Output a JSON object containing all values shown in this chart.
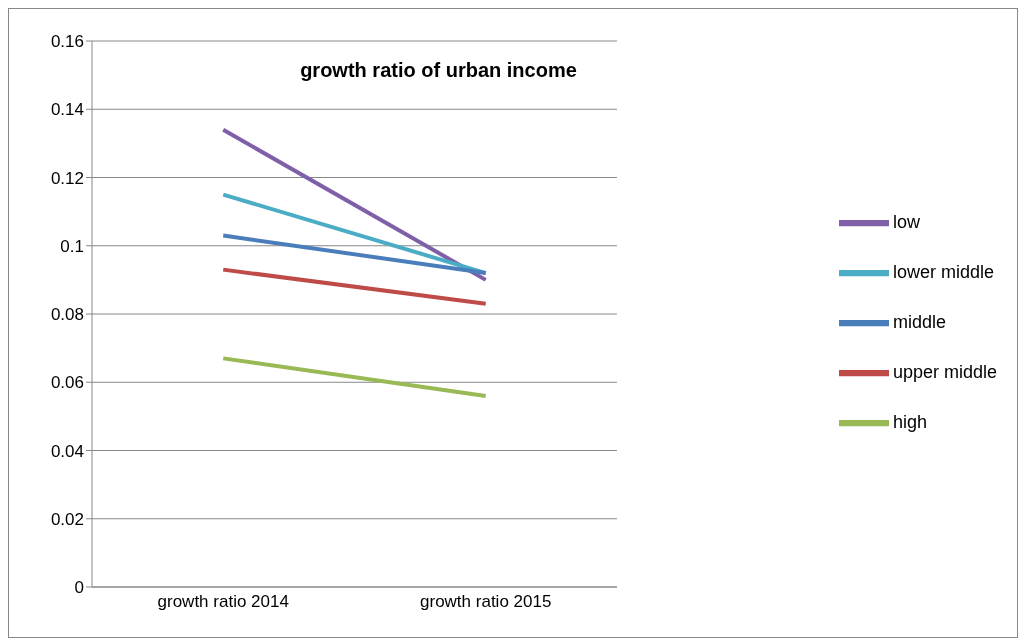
{
  "chart_data": {
    "type": "line",
    "title": "growth ratio of urban income",
    "categories": [
      "growth ratio 2014",
      "growth ratio 2015"
    ],
    "series": [
      {
        "name": "low",
        "color": "#7f5fa8",
        "values": [
          0.134,
          0.09
        ]
      },
      {
        "name": "lower middle",
        "color": "#4bacc6",
        "values": [
          0.115,
          0.092
        ]
      },
      {
        "name": "middle",
        "color": "#4a7ebb",
        "values": [
          0.103,
          0.092
        ]
      },
      {
        "name": "upper middle",
        "color": "#be4b48",
        "values": [
          0.093,
          0.083
        ]
      },
      {
        "name": "high",
        "color": "#98b954",
        "values": [
          0.067,
          0.056
        ]
      }
    ],
    "ylim": [
      0,
      0.16
    ],
    "yticks": [
      0,
      0.02,
      0.04,
      0.06,
      0.08,
      {
        "value": 0.1,
        "label": "0.1"
      },
      0.12,
      0.14,
      0.16
    ],
    "grid": "y",
    "legend": "right",
    "marker": "none",
    "line_style": "solid"
  }
}
